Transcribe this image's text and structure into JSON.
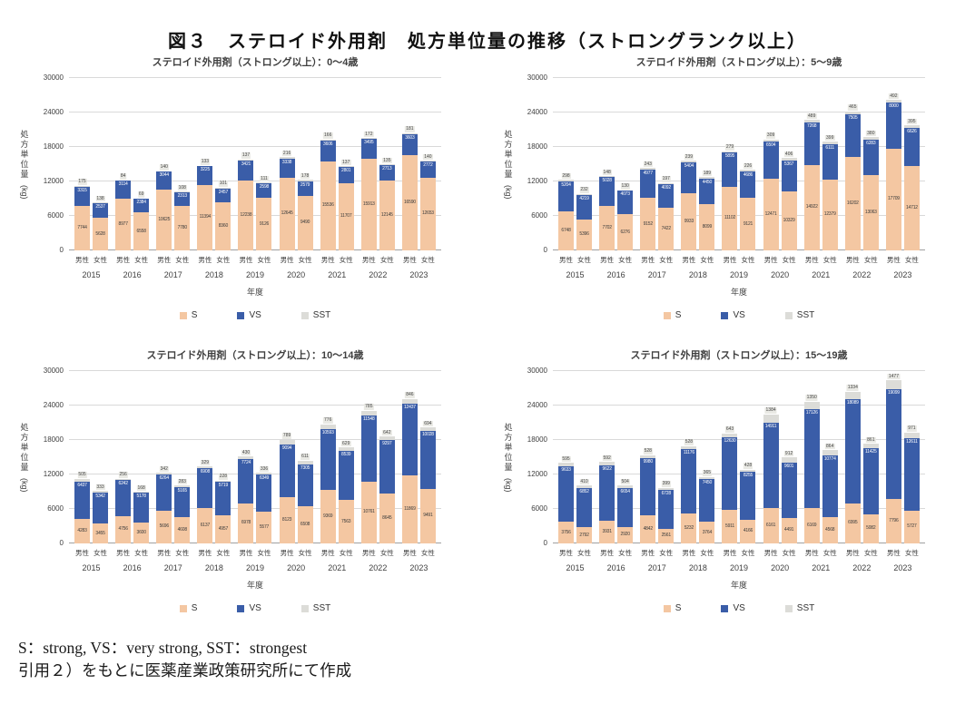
{
  "page": {
    "title": "図３　ステロイド外用剤　処方単位量の推移（ストロングランク以上）",
    "footnote_line1": "S：strong, VS：very strong, SST：strongest",
    "footnote_line2": "引用２）をもとに医薬産業政策研究所にて作成"
  },
  "colors": {
    "s": "#f4c7a2",
    "vs": "#3a5da8",
    "sst": "#dcdcd8",
    "grid": "#d9d9d9",
    "baseline": "#a0a0a0"
  },
  "axis": {
    "tick_values": [
      0,
      6000,
      12000,
      18000,
      24000,
      30000
    ],
    "y_title": "処方単位量",
    "y_unit": "(kg)",
    "x_title": "年度",
    "sex_labels": [
      "男性",
      "女性"
    ]
  },
  "legend": {
    "items": [
      {
        "label": "S",
        "color_key": "s"
      },
      {
        "label": "VS",
        "color_key": "vs"
      },
      {
        "label": "SST",
        "color_key": "sst"
      }
    ]
  },
  "chart_data": [
    {
      "type": "bar",
      "stacked": true,
      "title": "ステロイド外用剤（ストロング以上）：0～4歳",
      "xlabel": "年度",
      "ylabel": "処方単位量 (kg)",
      "ylim": [
        0,
        30000
      ],
      "grid": true,
      "years": [
        "2015",
        "2016",
        "2017",
        "2018",
        "2019",
        "2020",
        "2021",
        "2022",
        "2023"
      ],
      "series_order": [
        "S",
        "VS",
        "SST"
      ],
      "male": {
        "S": [
          7744,
          8977,
          10625,
          11394,
          12238,
          12645,
          15536,
          15913,
          16590
        ],
        "VS": [
          3315,
          3114,
          3044,
          3225,
          3421,
          3338,
          3606,
          3495,
          3603
        ],
        "SST": [
          175,
          84,
          140,
          133,
          137,
          216,
          166,
          172,
          181
        ]
      },
      "female": {
        "S": [
          5628,
          6558,
          7780,
          8360,
          9126,
          9490,
          11707,
          12145,
          12653
        ],
        "VS": [
          2537,
          2384,
          2313,
          2457,
          2598,
          2579,
          2801,
          2713,
          2772
        ],
        "SST": [
          138,
          69,
          108,
          101,
          111,
          178,
          137,
          135,
          140
        ]
      }
    },
    {
      "type": "bar",
      "stacked": true,
      "title": "ステロイド外用剤（ストロング以上）：5～9歳",
      "xlabel": "年度",
      "ylabel": "処方単位量 (kg)",
      "ylim": [
        0,
        30000
      ],
      "grid": true,
      "years": [
        "2015",
        "2016",
        "2017",
        "2018",
        "2019",
        "2020",
        "2021",
        "2022",
        "2023"
      ],
      "series_order": [
        "S",
        "VS",
        "SST"
      ],
      "male": {
        "S": [
          6748,
          7702,
          9152,
          9933,
          11102,
          12471,
          14922,
          16202,
          17709
        ],
        "VS": [
          5204,
          5028,
          4977,
          5404,
          5895,
          6504,
          7268,
          7505,
          8000
        ],
        "SST": [
          298,
          148,
          243,
          239,
          279,
          309,
          489,
          465,
          492
        ]
      },
      "female": {
        "S": [
          5396,
          6276,
          7422,
          8099,
          9121,
          10329,
          12379,
          13063,
          14712
        ],
        "VS": [
          4219,
          4073,
          4092,
          4450,
          4686,
          5367,
          6111,
          6283,
          6626
        ],
        "SST": [
          232,
          130,
          197,
          189,
          226,
          406,
          399,
          380,
          395
        ]
      }
    },
    {
      "type": "bar",
      "stacked": true,
      "title": "ステロイド外用剤（ストロング以上）：10～14歳",
      "xlabel": "年度",
      "ylabel": "処方単位量 (kg)",
      "ylim": [
        0,
        30000
      ],
      "grid": true,
      "years": [
        "2015",
        "2016",
        "2017",
        "2018",
        "2019",
        "2020",
        "2021",
        "2022",
        "2023"
      ],
      "series_order": [
        "S",
        "VS",
        "SST"
      ],
      "male": {
        "S": [
          4283,
          4756,
          5696,
          6137,
          6978,
          8123,
          9369,
          10761,
          11869
        ],
        "VS": [
          6437,
          6242,
          6264,
          6908,
          7724,
          9094,
          10593,
          11548,
          12437
        ],
        "SST": [
          505,
          256,
          342,
          329,
          430,
          789,
          776,
          785,
          846
        ]
      },
      "female": {
        "S": [
          3455,
          3600,
          4608,
          4957,
          5577,
          6508,
          7563,
          8645,
          9491
        ],
        "VS": [
          5342,
          5178,
          5165,
          5719,
          6349,
          7305,
          8539,
          9297,
          10028
        ],
        "SST": [
          333,
          168,
          283,
          228,
          336,
          611,
          629,
          642,
          694
        ]
      }
    },
    {
      "type": "bar",
      "stacked": true,
      "title": "ステロイド外用剤（ストロング以上）：15～19歳",
      "xlabel": "年度",
      "ylabel": "処方単位量 (kg)",
      "ylim": [
        0,
        30000
      ],
      "grid": true,
      "years": [
        "2015",
        "2016",
        "2017",
        "2018",
        "2019",
        "2020",
        "2021",
        "2022",
        "2023"
      ],
      "series_order": [
        "S",
        "VS",
        "SST"
      ],
      "male": {
        "S": [
          3756,
          3931,
          4842,
          5232,
          5911,
          6161,
          6169,
          6995,
          7796
        ],
        "VS": [
          9633,
          9622,
          9980,
          11176,
          12630,
          14911,
          17126,
          18089,
          19099
        ],
        "SST": [
          595,
          592,
          528,
          528,
          643,
          1384,
          1350,
          1334,
          1477
        ]
      },
      "female": {
        "S": [
          2792,
          2920,
          2561,
          3764,
          4166,
          4491,
          4568,
          5082,
          5727
        ],
        "VS": [
          6852,
          6654,
          6728,
          7450,
          8255,
          9601,
          10774,
          11425,
          12611
        ],
        "SST": [
          410,
          504,
          399,
          365,
          428,
          912,
          864,
          861,
          971
        ]
      }
    }
  ]
}
